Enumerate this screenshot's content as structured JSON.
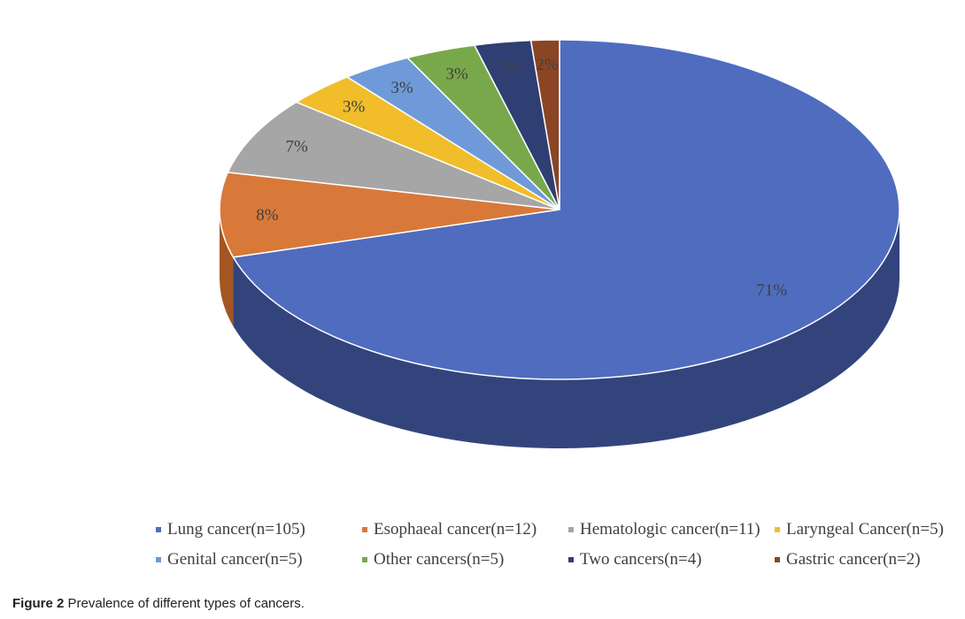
{
  "chart_data": {
    "type": "pie",
    "style": "3d",
    "categories": [
      "Lung cancer",
      "Esophaeal cancer",
      "Hematologic cancer",
      "Laryngeal Cancer",
      "Genital cancer",
      "Other cancers",
      "Two cancers",
      "Gastric cancer"
    ],
    "values": [
      105,
      12,
      11,
      5,
      5,
      5,
      4,
      2
    ],
    "percent_labels": [
      "71%",
      "8%",
      "7%",
      "3%",
      "3%",
      "3%",
      "3%",
      "2%"
    ],
    "legend_labels": [
      "Lung cancer(n=105)",
      "Esophaeal cancer(n=12)",
      "Hematologic cancer(n=11)",
      "Laryngeal Cancer(n=5)",
      "Genital cancer(n=5)",
      "Other cancers(n=5)",
      "Two cancers(n=4)",
      "Gastric cancer(n=2)"
    ],
    "colors": [
      "#4f6cbf",
      "#d8793a",
      "#a6a6a6",
      "#f1bd2a",
      "#6f9ad9",
      "#79a84b",
      "#2f3f73",
      "#8a4524"
    ],
    "side_colors": [
      "#33447c",
      "#a45524",
      "#7a7a7a",
      "#b8901c",
      "#4d71a6",
      "#587d34",
      "#1f2a4d",
      "#5d2e17"
    ],
    "legend_position": "bottom"
  },
  "caption": {
    "figure_label": "Figure 2",
    "text": "Prevalence of different types of cancers."
  }
}
